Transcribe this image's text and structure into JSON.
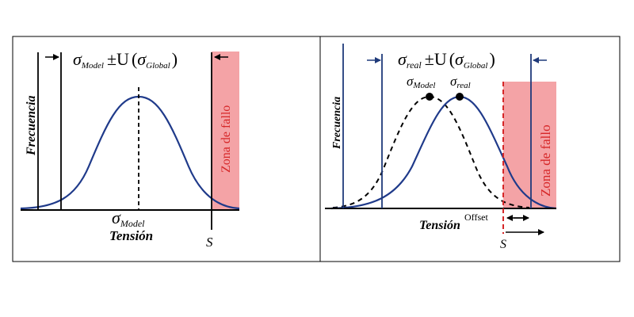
{
  "left_panel": {
    "y_label": "Frecuencia",
    "x_label": "Tensión",
    "formula": {
      "sigma": "σ",
      "sigma_sub": "Model",
      "pm": "±U",
      "open": "(",
      "sigma2": "σ",
      "sigma2_sub": "Global",
      "close": ")"
    },
    "mean_label": {
      "sigma": "σ",
      "sub": "Model"
    },
    "zone_label": "Zona de fallo",
    "s_label": "S"
  },
  "right_panel": {
    "y_label": "Frecuencia",
    "x_label": "Tensión",
    "formula": {
      "sigma": "σ",
      "sigma_sub": "real",
      "pm": "±U",
      "open": "(",
      "sigma2": "σ",
      "sigma2_sub": "Global",
      "close": ")"
    },
    "peak_model": {
      "sigma": "σ",
      "sub": "Model"
    },
    "peak_real": {
      "sigma": "σ",
      "sub": "real"
    },
    "zone_label": "Zona de fallo",
    "offset_label": "Offset",
    "s_label": "S"
  },
  "colors": {
    "curve": "#1f3a8a",
    "zone_fill": "#f4a3a6",
    "zone_text": "#d62728",
    "s_dash": "#d62728"
  }
}
